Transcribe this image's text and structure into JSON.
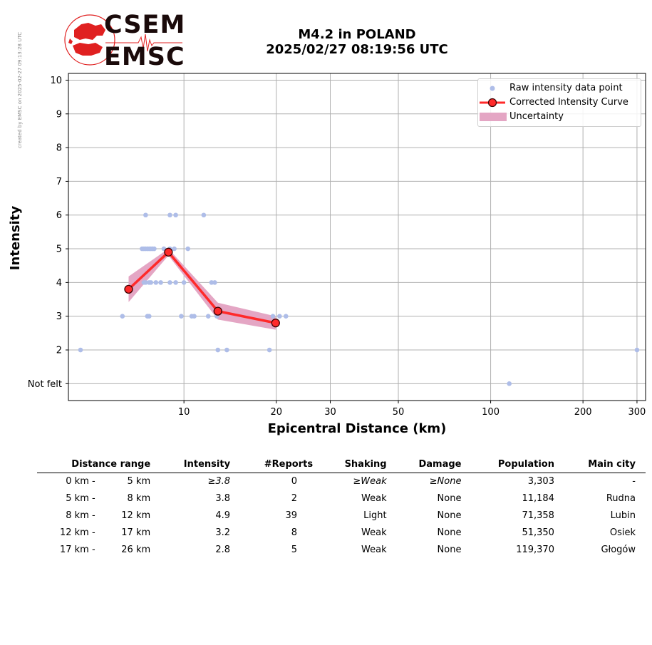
{
  "watermark": "created by EMSC on 2025-02-27 09:13:28 UTC",
  "logo": {
    "line1": "CSEM",
    "line2": "EMSC",
    "brand_color": "#e02020"
  },
  "title": {
    "line1": "M4.2 in POLAND",
    "line2": "2025/02/27 08:19:56 UTC"
  },
  "chart_data": {
    "type": "scatter",
    "xlabel": "Epicentral Distance (km)",
    "ylabel": "Intensity",
    "x_scale": "log",
    "xlim": [
      4.2,
      320
    ],
    "ylim": [
      0.5,
      10.2
    ],
    "x_ticks": [
      10,
      20,
      30,
      50,
      100,
      200,
      300
    ],
    "y_ticks": [
      1,
      2,
      3,
      4,
      5,
      6,
      7,
      8,
      9,
      10
    ],
    "y_tick_labels": [
      "Not felt",
      "2",
      "3",
      "4",
      "5",
      "6",
      "7",
      "8",
      "9",
      "10"
    ],
    "grid": true,
    "legend_position": "top-right",
    "legend": [
      "Raw intensity data point",
      "Corrected Intensity Curve",
      "Uncertainty"
    ],
    "colors": {
      "raw": "#aebde8",
      "curve": "#ff2a2a",
      "marker_edge": "#3a0000",
      "uncertainty": "#e4a6c4",
      "grid": "#b0b0b0"
    },
    "series": [
      {
        "name": "Raw intensity data point",
        "points": [
          [
            4.6,
            2
          ],
          [
            6.3,
            3
          ],
          [
            7.6,
            3
          ],
          [
            7.7,
            3
          ],
          [
            9.8,
            3
          ],
          [
            10.6,
            3
          ],
          [
            10.8,
            3
          ],
          [
            12.0,
            3
          ],
          [
            12.8,
            3
          ],
          [
            19.5,
            3
          ],
          [
            20.5,
            3
          ],
          [
            21.5,
            3
          ],
          [
            7.4,
            4
          ],
          [
            7.5,
            4
          ],
          [
            7.7,
            4
          ],
          [
            7.8,
            4
          ],
          [
            8.1,
            4
          ],
          [
            8.4,
            4
          ],
          [
            9.0,
            4
          ],
          [
            9.4,
            4
          ],
          [
            10.0,
            4
          ],
          [
            12.3,
            4
          ],
          [
            12.6,
            4
          ],
          [
            7.3,
            5
          ],
          [
            7.4,
            5
          ],
          [
            7.5,
            5
          ],
          [
            7.6,
            5
          ],
          [
            7.7,
            5
          ],
          [
            7.8,
            5
          ],
          [
            7.9,
            5
          ],
          [
            8.0,
            5
          ],
          [
            8.6,
            5
          ],
          [
            9.0,
            5
          ],
          [
            9.3,
            5
          ],
          [
            10.3,
            5
          ],
          [
            7.5,
            6
          ],
          [
            9.0,
            6
          ],
          [
            9.4,
            6
          ],
          [
            11.6,
            6
          ],
          [
            12.9,
            2
          ],
          [
            13.8,
            2
          ],
          [
            19.0,
            2
          ],
          [
            300,
            2
          ],
          [
            115,
            1
          ]
        ]
      },
      {
        "name": "Corrected Intensity Curve",
        "points": [
          [
            6.6,
            3.8
          ],
          [
            8.9,
            4.9
          ],
          [
            12.9,
            3.15
          ],
          [
            19.9,
            2.8
          ]
        ],
        "uncertainty_lower": [
          3.42,
          4.8,
          2.9,
          2.6
        ],
        "uncertainty_upper": [
          4.18,
          5.0,
          3.4,
          3.0
        ]
      }
    ]
  },
  "table": {
    "headers": [
      "Distance range",
      "Intensity",
      "#Reports",
      "Shaking",
      "Damage",
      "Population",
      "Main city"
    ],
    "rows": [
      {
        "range_from": "0 km -",
        "range_to": "5 km",
        "intensity": "≥3.8",
        "reports": "0",
        "shaking": "≥Weak",
        "damage": "≥None",
        "population": "3,303",
        "city": "-"
      },
      {
        "range_from": "5 km -",
        "range_to": "8 km",
        "intensity": "3.8",
        "reports": "2",
        "shaking": "Weak",
        "damage": "None",
        "population": "11,184",
        "city": "Rudna"
      },
      {
        "range_from": "8 km -",
        "range_to": "12 km",
        "intensity": "4.9",
        "reports": "39",
        "shaking": "Light",
        "damage": "None",
        "population": "71,358",
        "city": "Lubin"
      },
      {
        "range_from": "12 km -",
        "range_to": "17 km",
        "intensity": "3.2",
        "reports": "8",
        "shaking": "Weak",
        "damage": "None",
        "population": "51,350",
        "city": "Osiek"
      },
      {
        "range_from": "17 km -",
        "range_to": "26 km",
        "intensity": "2.8",
        "reports": "5",
        "shaking": "Weak",
        "damage": "None",
        "population": "119,370",
        "city": "Głogów"
      }
    ]
  }
}
